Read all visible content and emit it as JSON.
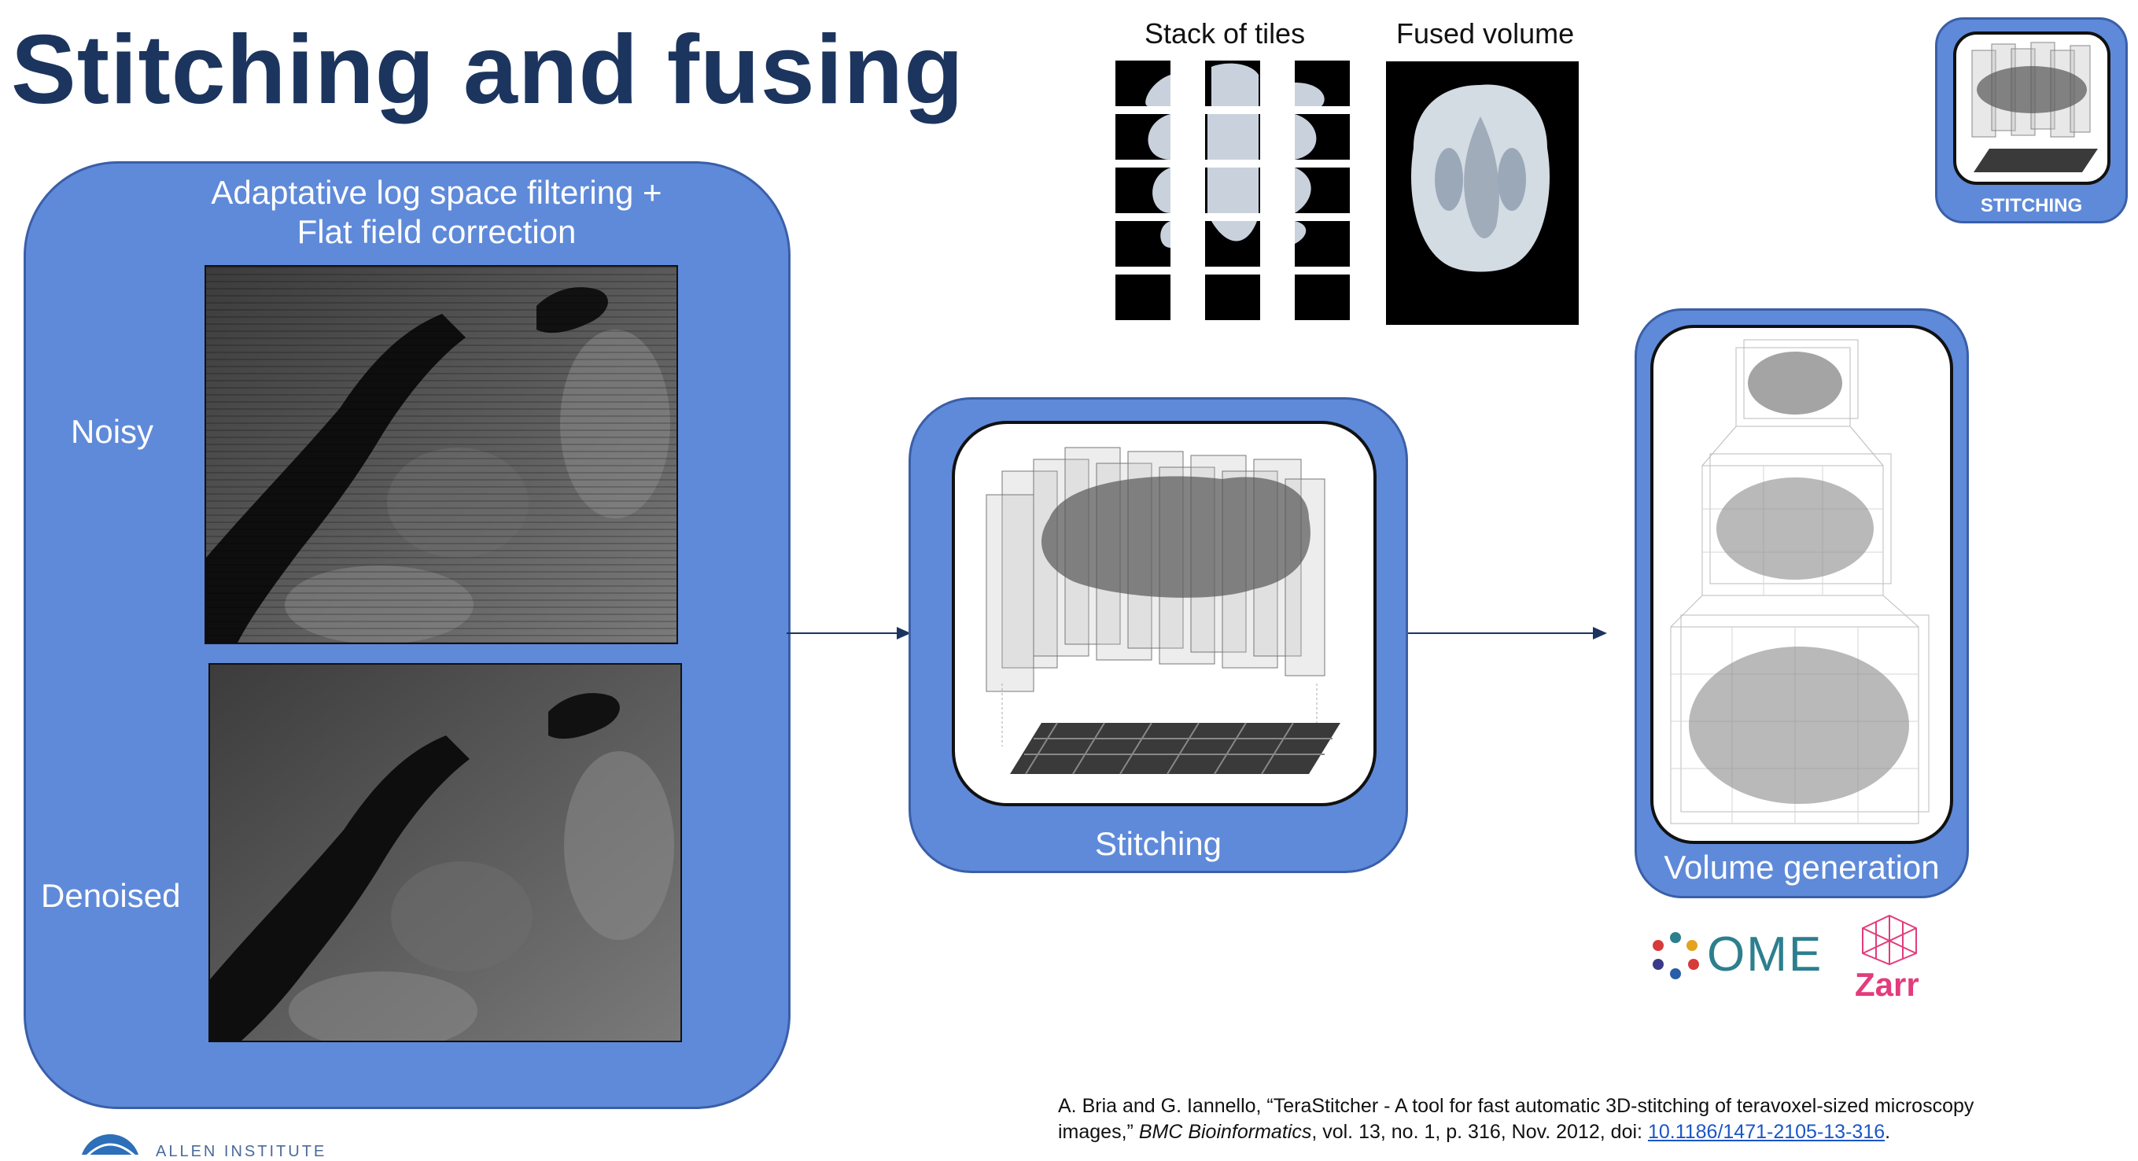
{
  "title": "Stitching and fusing",
  "filter_panel": {
    "heading_line1": "Adaptative log space filtering +",
    "heading_line2": "Flat field correction",
    "noisy_label": "Noisy",
    "denoised_label": "Denoised"
  },
  "stitching_panel": {
    "label": "Stitching"
  },
  "volume_panel": {
    "label": "Volume generation"
  },
  "top_figure": {
    "stack_caption": "Stack of tiles",
    "fused_caption": "Fused volume"
  },
  "badge": {
    "label": "STITCHING"
  },
  "logos": {
    "ome": "OME",
    "zarr": "Zarr"
  },
  "footer_logo": {
    "text": "ALLEN INSTITUTE"
  },
  "reference": {
    "line1": "A. Bria and G. Iannello, “TeraStitcher - A tool for fast automatic 3D-stitching of teravoxel-sized microscopy",
    "line2_pre": "images,”",
    "journal": "BMC Bioinformatics",
    "line2_post": ", vol. 13, no. 1, p. 316, Nov. 2012, doi:",
    "doi": "10.1186/1471-2105-13-316",
    "end": "."
  },
  "colors": {
    "title": "#1c355e",
    "panel": "#5f8ad9",
    "panel_border": "#3a5fa8",
    "arrow": "#1c355e",
    "ome_text": "#2d7f8e",
    "zarr": "#e23c7c",
    "link": "#1a56c5"
  }
}
